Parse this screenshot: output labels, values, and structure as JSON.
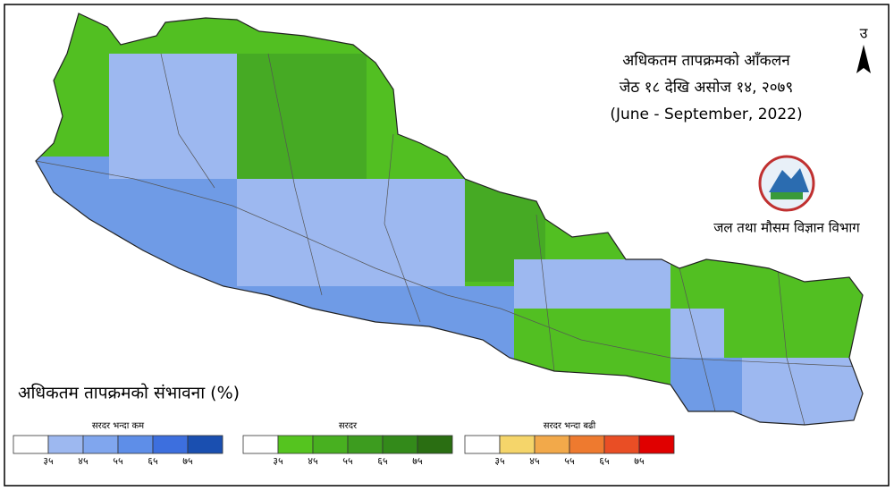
{
  "header": {
    "title": "अधिकतम तापक्रमको आँकलन",
    "dates": "जेठ १८ देखि असोज १४, २०७९",
    "english": "(June - September, 2022)"
  },
  "north": "उ",
  "department": "जल तथा मौसम विज्ञान विभाग",
  "legend": {
    "title": "अधिकतम तापक्रमको संभावना (%)",
    "groups": [
      {
        "label": "सरदर भन्दा कम",
        "colors": [
          "#ffffff",
          "#9db8f0",
          "#80a6ee",
          "#5e8ee8",
          "#3d6fde",
          "#1a4fb0"
        ],
        "ticks": [
          "३५",
          "४५",
          "५५",
          "६५",
          "७५"
        ]
      },
      {
        "label": "सरदर",
        "colors": [
          "#ffffff",
          "#55c41f",
          "#48b020",
          "#3d9c1f",
          "#338a1a",
          "#2a6e12"
        ],
        "ticks": [
          "३५",
          "४५",
          "५५",
          "६५",
          "७५"
        ]
      },
      {
        "label": "सरदर भन्दा बढी",
        "colors": [
          "#ffffff",
          "#f5d56a",
          "#f2a94a",
          "#ee7a2f",
          "#e94e25",
          "#e00000"
        ],
        "ticks": [
          "३५",
          "४५",
          "५५",
          "६५",
          "७५"
        ]
      }
    ]
  }
}
